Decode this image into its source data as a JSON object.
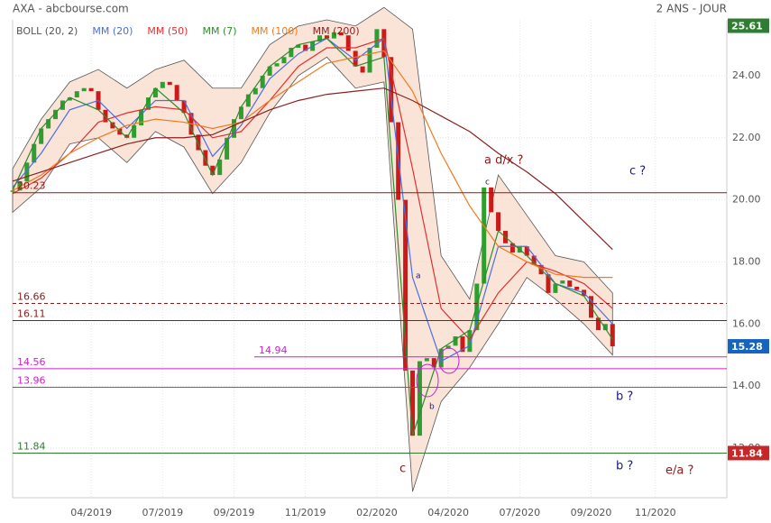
{
  "chart_data": {
    "type": "stock",
    "title": "AXA - abcbourse.com",
    "period": "2 ANS - JOUR",
    "xlim": [
      0,
      100
    ],
    "ylim": [
      10.4,
      25.8
    ],
    "xticks": [
      {
        "value": 11,
        "label": "04/2019"
      },
      {
        "value": 21,
        "label": "07/2019"
      },
      {
        "value": 31,
        "label": "09/2019"
      },
      {
        "value": 41,
        "label": "11/2019"
      },
      {
        "value": 51,
        "label": "02/2020"
      },
      {
        "value": 61,
        "label": "04/2020"
      },
      {
        "value": 71,
        "label": "07/2020"
      },
      {
        "value": 81,
        "label": "09/2020"
      },
      {
        "value": 90,
        "label": "11/2020"
      }
    ],
    "yticks": [
      {
        "value": 12,
        "label": "12.00"
      },
      {
        "value": 14,
        "label": "14.00"
      },
      {
        "value": 16,
        "label": "16.00"
      },
      {
        "value": 18,
        "label": "18.00"
      },
      {
        "value": 20,
        "label": "20.00"
      },
      {
        "value": 22,
        "label": "22.00"
      },
      {
        "value": 24,
        "label": "24.00"
      }
    ],
    "grid": true,
    "price": {
      "up_color": "#2e9e2e",
      "down_color": "#cc1a1a",
      "x": [
        0,
        1,
        2,
        3,
        4,
        5,
        6,
        7,
        8,
        9,
        10,
        11,
        12,
        13,
        14,
        15,
        16,
        17,
        18,
        19,
        20,
        21,
        22,
        23,
        24,
        25,
        26,
        27,
        28,
        29,
        30,
        31,
        32,
        33,
        34,
        35,
        36,
        37,
        38,
        39,
        40,
        41,
        42,
        43,
        44,
        45,
        46,
        47,
        48,
        49,
        50,
        51,
        52,
        53,
        54,
        55,
        56,
        57,
        58,
        59,
        60,
        61,
        62,
        63,
        64,
        65,
        66,
        67,
        68,
        69,
        70,
        71,
        72,
        73,
        74,
        75,
        76,
        77,
        78,
        79,
        80,
        81,
        82,
        83,
        84
      ],
      "values": [
        20.3,
        20.6,
        21.2,
        21.8,
        22.3,
        22.6,
        22.9,
        23.2,
        23.3,
        23.5,
        23.6,
        23.5,
        22.9,
        22.5,
        22.3,
        22.1,
        22.0,
        22.4,
        22.9,
        23.3,
        23.6,
        23.8,
        23.7,
        23.2,
        22.8,
        22.1,
        21.6,
        21.1,
        20.8,
        21.3,
        22.0,
        22.6,
        23.0,
        23.4,
        23.6,
        24.0,
        24.3,
        24.4,
        24.6,
        24.9,
        25.0,
        24.8,
        25.1,
        25.3,
        25.2,
        25.4,
        25.3,
        24.8,
        24.3,
        24.1,
        24.9,
        25.5,
        24.6,
        22.5,
        20.0,
        14.5,
        12.4,
        14.8,
        14.9,
        14.6,
        15.2,
        15.3,
        15.6,
        15.1,
        15.8,
        17.3,
        20.4,
        19.6,
        19.0,
        18.6,
        18.3,
        18.5,
        18.2,
        17.9,
        17.6,
        17.0,
        17.3,
        17.4,
        17.2,
        17.1,
        16.9,
        16.2,
        15.8,
        16.0,
        15.28
      ]
    },
    "ma_x": [
      0,
      4,
      8,
      12,
      16,
      20,
      24,
      28,
      32,
      36,
      40,
      44,
      48,
      52,
      56,
      60,
      64,
      68,
      72,
      76,
      80,
      84
    ],
    "bands": {
      "name": "BOLL (20, 2)",
      "color": "#f8d9c8",
      "upper": [
        21.0,
        22.6,
        23.8,
        24.2,
        23.6,
        24.2,
        24.5,
        23.6,
        23.6,
        25.0,
        25.6,
        25.8,
        25.6,
        26.2,
        25.5,
        18.2,
        16.8,
        20.8,
        19.5,
        18.2,
        18.0,
        17.0
      ],
      "lower": [
        19.6,
        20.4,
        21.8,
        22.0,
        21.2,
        22.2,
        21.7,
        20.2,
        21.2,
        22.8,
        24.0,
        24.6,
        23.6,
        23.8,
        10.6,
        13.5,
        14.6,
        16.0,
        17.5,
        16.8,
        16.0,
        15.0
      ]
    },
    "series": [
      {
        "name": "MM (20)",
        "color": "#4a6fe0",
        "values": [
          20.4,
          21.5,
          22.9,
          23.2,
          22.3,
          23.2,
          23.2,
          21.4,
          22.4,
          23.9,
          24.7,
          25.2,
          24.5,
          25.2,
          17.5,
          14.8,
          15.3,
          18.5,
          18.5,
          17.3,
          17.0,
          16.0
        ]
      },
      {
        "name": "MM (50)",
        "color": "#e03030",
        "values": [
          20.2,
          20.7,
          21.5,
          22.5,
          22.8,
          23.0,
          22.9,
          22.0,
          22.2,
          23.2,
          24.3,
          24.9,
          24.9,
          25.2,
          21.0,
          16.5,
          15.5,
          17.0,
          18.0,
          17.7,
          17.3,
          16.5
        ]
      },
      {
        "name": "MM (7)",
        "color": "#2e8b2e",
        "values": [
          20.3,
          22.3,
          23.3,
          22.9,
          22.0,
          23.6,
          22.8,
          20.8,
          23.0,
          24.3,
          25.0,
          25.2,
          24.3,
          24.6,
          12.4,
          15.2,
          15.8,
          19.0,
          18.2,
          17.3,
          16.9,
          15.5
        ]
      },
      {
        "name": "MM (100)",
        "color": "#f07a20",
        "values": [
          20.3,
          20.8,
          21.5,
          22.0,
          22.4,
          22.6,
          22.5,
          22.3,
          22.5,
          23.2,
          23.8,
          24.4,
          24.6,
          24.8,
          23.5,
          21.5,
          19.8,
          18.5,
          18.0,
          17.6,
          17.5,
          17.5
        ]
      },
      {
        "name": "MM (200)",
        "color": "#8b2020",
        "values": [
          20.6,
          20.9,
          21.2,
          21.5,
          21.8,
          22.0,
          22.0,
          22.1,
          22.5,
          22.9,
          23.2,
          23.4,
          23.5,
          23.6,
          23.2,
          22.7,
          22.2,
          21.5,
          20.9,
          20.2,
          19.3,
          18.4
        ]
      }
    ],
    "levels": [
      {
        "value": 20.23,
        "color": "#8b1a1a",
        "dashed": false
      },
      {
        "value": 16.66,
        "color": "#8b1a1a",
        "dashed": true
      },
      {
        "value": 16.11,
        "color": "#8b1a1a",
        "dashed": false
      },
      {
        "value": 14.94,
        "color": "#cc22cc",
        "dashed": false
      },
      {
        "value": 14.56,
        "color": "#cc22cc",
        "dashed": false
      },
      {
        "value": 13.96,
        "color": "#cc22cc",
        "dashed": false
      },
      {
        "value": 11.84,
        "color": "#2e7d2e",
        "dashed": false
      }
    ],
    "tags": [
      {
        "value": 25.61,
        "color": "#2e7d32"
      },
      {
        "value": 15.28,
        "color": "#1565c0"
      },
      {
        "value": 11.84,
        "color": "#c62828"
      }
    ],
    "annotations": [
      "a  d/x ?",
      "c ?",
      "b ?",
      "b ?",
      "e/a ?",
      "c",
      "a",
      "c",
      "b"
    ]
  }
}
